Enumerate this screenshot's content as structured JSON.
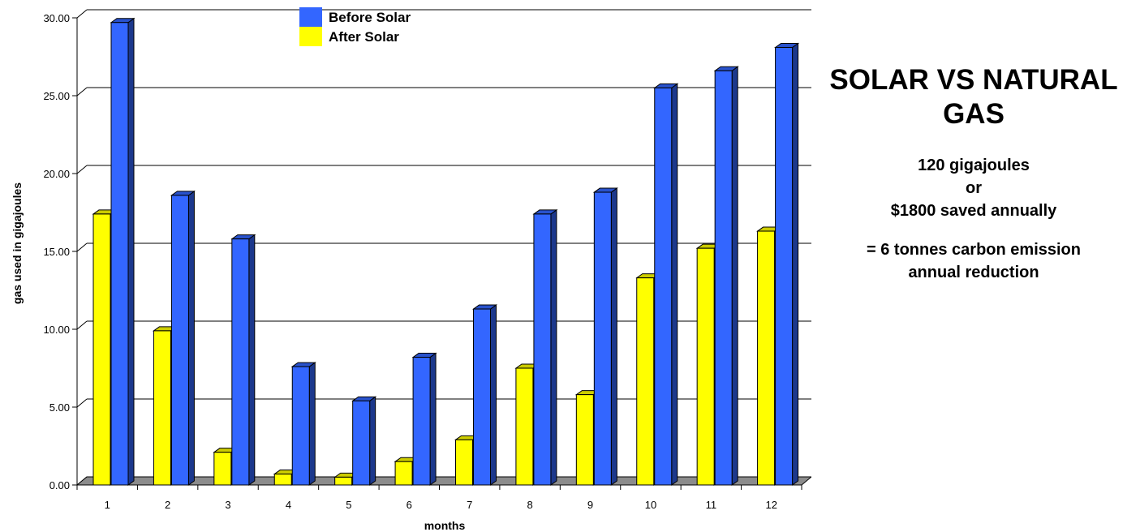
{
  "chart_data": {
    "type": "bar",
    "categories": [
      "1",
      "2",
      "3",
      "4",
      "5",
      "6",
      "7",
      "8",
      "9",
      "10",
      "11",
      "12"
    ],
    "series": [
      {
        "name": "After Solar",
        "color": "#ffff00",
        "values": [
          17.4,
          9.9,
          2.1,
          0.7,
          0.5,
          1.5,
          2.9,
          7.5,
          5.8,
          13.3,
          15.2,
          16.3
        ]
      },
      {
        "name": "Before Solar",
        "color": "#3366ff",
        "values": [
          29.7,
          18.6,
          15.8,
          7.6,
          5.4,
          8.2,
          11.3,
          17.4,
          18.8,
          25.5,
          26.6,
          28.1
        ]
      }
    ],
    "legend_order": [
      "Before Solar",
      "After Solar"
    ],
    "title": "",
    "xlabel": "months",
    "ylabel": "gas used in gigajoules",
    "ylim": [
      0,
      30
    ],
    "yticks": [
      "0.00",
      "5.00",
      "10.00",
      "15.00",
      "20.00",
      "25.00",
      "30.00"
    ],
    "grid": true,
    "legend_position": "top-center"
  },
  "panel": {
    "title": "SOLAR VS NATURAL GAS",
    "line1": "120 gigajoules",
    "line2": "or",
    "line3": "$1800 saved annually",
    "line4": "= 6 tonnes carbon emission",
    "line5": "annual reduction"
  }
}
